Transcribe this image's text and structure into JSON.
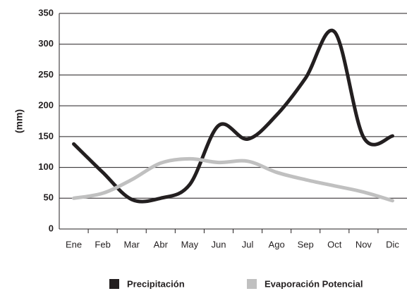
{
  "chart_data": {
    "type": "line",
    "ylabel": "(mm)",
    "categories": [
      "Ene",
      "Feb",
      "Mar",
      "Abr",
      "May",
      "Jun",
      "Jul",
      "Ago",
      "Sep",
      "Oct",
      "Nov",
      "Dic"
    ],
    "series": [
      {
        "name": "Precipitación",
        "color": "#231f20",
        "values": [
          138,
          92,
          48,
          50,
          72,
          168,
          146,
          185,
          245,
          320,
          149,
          151
        ]
      },
      {
        "name": "Evaporación Potencial",
        "color": "#c0c0c0",
        "values": [
          50,
          58,
          80,
          107,
          114,
          108,
          110,
          92,
          80,
          70,
          60,
          46
        ]
      }
    ],
    "ylim": [
      0,
      350
    ],
    "yticks": [
      0,
      50,
      100,
      150,
      200,
      250,
      300,
      350
    ],
    "grid": true,
    "legend": "bottom"
  }
}
